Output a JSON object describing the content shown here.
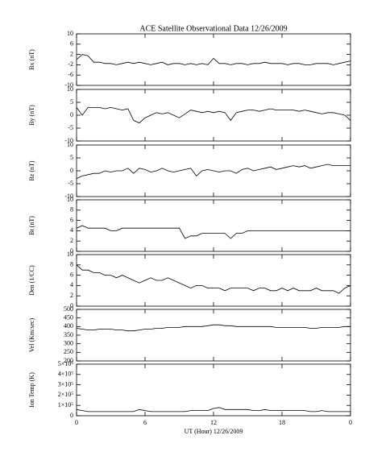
{
  "chart_data": [
    {
      "type": "line",
      "title": "ACE Satellite Observational Data   12/26/2009",
      "y_label": "Bx (nT)",
      "x": [
        0,
        0.5,
        1,
        1.5,
        2,
        2.5,
        3,
        3.5,
        4,
        4.5,
        5,
        5.5,
        6,
        6.5,
        7,
        7.5,
        8,
        8.5,
        9,
        9.5,
        10,
        10.5,
        11,
        11.5,
        12,
        12.5,
        13,
        13.5,
        14,
        14.5,
        15,
        15.5,
        16,
        16.5,
        17,
        17.5,
        18,
        18.5,
        19,
        19.5,
        20,
        20.5,
        21,
        21.5,
        22,
        22.5,
        23,
        23.5,
        24
      ],
      "values": [
        0,
        2,
        1.5,
        -1,
        -1,
        -1.5,
        -1.5,
        -2,
        -1.5,
        -1,
        -1.5,
        -1,
        -1.5,
        -2,
        -1.5,
        -1,
        -2,
        -1.5,
        -1.5,
        -2,
        -1.5,
        -2,
        -1.5,
        -2,
        0.5,
        -1.5,
        -1.5,
        -2,
        -1.5,
        -1.5,
        -2,
        -1.5,
        -1.5,
        -1,
        -1.5,
        -1.5,
        -1.5,
        -2,
        -1.5,
        -1.5,
        -2,
        -2,
        -1.5,
        -1.5,
        -1.5,
        -2,
        -1.5,
        -1,
        -0.5
      ],
      "color": "#000000",
      "xlim": [
        0,
        24
      ],
      "xticks": [
        0,
        6,
        12,
        18,
        24
      ],
      "ylim": [
        -10,
        10
      ],
      "yticks": [
        10,
        6,
        2,
        -2,
        -6,
        -10
      ]
    },
    {
      "type": "line",
      "y_label": "By (nT)",
      "x": [
        0,
        0.5,
        1,
        1.5,
        2,
        2.5,
        3,
        3.5,
        4,
        4.5,
        5,
        5.5,
        6,
        6.5,
        7,
        7.5,
        8,
        8.5,
        9,
        9.5,
        10,
        10.5,
        11,
        11.5,
        12,
        12.5,
        13,
        13.5,
        14,
        14.5,
        15,
        15.5,
        16,
        16.5,
        17,
        17.5,
        18,
        18.5,
        19,
        19.5,
        20,
        20.5,
        21,
        21.5,
        22,
        22.5,
        23,
        23.5,
        24
      ],
      "values": [
        3,
        0,
        3,
        3,
        3,
        2.5,
        3,
        2.5,
        2,
        2.5,
        -2,
        -3,
        -1,
        0,
        1,
        0.5,
        1,
        0,
        -1,
        0.5,
        2,
        1.5,
        1,
        1.5,
        1,
        1.5,
        1,
        -2,
        1,
        1.5,
        2,
        2,
        1.5,
        2,
        2.5,
        2,
        2,
        2,
        2,
        1.5,
        2,
        1.5,
        1,
        0.5,
        1,
        1,
        0.5,
        0,
        -2
      ],
      "color": "#000000",
      "xlim": [
        0,
        24
      ],
      "xticks": [
        0,
        6,
        12,
        18,
        24
      ],
      "ylim": [
        -10,
        10
      ],
      "yticks": [
        10,
        5,
        0,
        -5,
        -10
      ]
    },
    {
      "type": "line",
      "y_label": "Bz (nT)",
      "x": [
        0,
        0.5,
        1,
        1.5,
        2,
        2.5,
        3,
        3.5,
        4,
        4.5,
        5,
        5.5,
        6,
        6.5,
        7,
        7.5,
        8,
        8.5,
        9,
        9.5,
        10,
        10.5,
        11,
        11.5,
        12,
        12.5,
        13,
        13.5,
        14,
        14.5,
        15,
        15.5,
        16,
        16.5,
        17,
        17.5,
        18,
        18.5,
        19,
        19.5,
        20,
        20.5,
        21,
        21.5,
        22,
        22.5,
        23,
        23.5,
        24
      ],
      "values": [
        -3,
        -2,
        -1.5,
        -1,
        -1,
        0,
        -0.5,
        0,
        0,
        1,
        -1,
        1,
        0.5,
        -0.5,
        0,
        1,
        0,
        -0.5,
        0,
        0.5,
        1,
        -2,
        0,
        0.5,
        0,
        -0.5,
        0,
        0,
        -1,
        0.5,
        1,
        0,
        0.5,
        1,
        1.5,
        0.5,
        1,
        1.5,
        2,
        1.5,
        2,
        1,
        1.5,
        2,
        2.5,
        2,
        2,
        2,
        2
      ],
      "color": "#000000",
      "xlim": [
        0,
        24
      ],
      "xticks": [
        0,
        6,
        12,
        18,
        24
      ],
      "ylim": [
        -10,
        10
      ],
      "yticks": [
        10,
        5,
        0,
        -5,
        -10
      ]
    },
    {
      "type": "line",
      "y_label": "Bt (nT)",
      "x": [
        0,
        0.5,
        1,
        1.5,
        2,
        2.5,
        3,
        3.5,
        4,
        4.5,
        5,
        5.5,
        6,
        6.5,
        7,
        7.5,
        8,
        8.5,
        9,
        9.5,
        10,
        10.5,
        11,
        11.5,
        12,
        12.5,
        13,
        13.5,
        14,
        14.5,
        15,
        15.5,
        16,
        16.5,
        17,
        17.5,
        18,
        18.5,
        19,
        19.5,
        20,
        20.5,
        21,
        21.5,
        22,
        22.5,
        23,
        23.5,
        24
      ],
      "values": [
        4.5,
        5,
        4.5,
        4.5,
        4.5,
        4.5,
        4,
        4,
        4.5,
        4.5,
        4.5,
        4.5,
        4.5,
        4.5,
        4.5,
        4.5,
        4.5,
        4.5,
        4.5,
        2.5,
        3,
        3,
        3.5,
        3.5,
        3.5,
        3.5,
        3.5,
        2.5,
        3.5,
        3.5,
        4,
        4,
        4,
        4,
        4,
        4,
        4,
        4,
        4,
        4,
        4,
        4,
        4,
        4,
        4,
        4,
        4,
        4,
        4
      ],
      "color": "#000000",
      "xlim": [
        0,
        24
      ],
      "xticks": [
        0,
        6,
        12,
        18,
        24
      ],
      "ylim": [
        0,
        10
      ],
      "yticks": [
        10,
        8,
        6,
        4,
        2,
        0
      ]
    },
    {
      "type": "line",
      "y_label": "Den (1/CC)",
      "x": [
        0,
        0.5,
        1,
        1.5,
        2,
        2.5,
        3,
        3.5,
        4,
        4.5,
        5,
        5.5,
        6,
        6.5,
        7,
        7.5,
        8,
        8.5,
        9,
        9.5,
        10,
        10.5,
        11,
        11.5,
        12,
        12.5,
        13,
        13.5,
        14,
        14.5,
        15,
        15.5,
        16,
        16.5,
        17,
        17.5,
        18,
        18.5,
        19,
        19.5,
        20,
        20.5,
        21,
        21.5,
        22,
        22.5,
        23,
        23.5,
        24
      ],
      "values": [
        8,
        7,
        7,
        6.5,
        6.5,
        6,
        6,
        5.5,
        6,
        5.5,
        5,
        4.5,
        5,
        5.5,
        5,
        5,
        5.5,
        5,
        4.5,
        4,
        3.5,
        4,
        4,
        3.5,
        3.5,
        3.5,
        3,
        3.5,
        3.5,
        3.5,
        3.5,
        3,
        3.5,
        3.5,
        3,
        3,
        3.5,
        3,
        3.5,
        3,
        3,
        3,
        3.5,
        3,
        3,
        3,
        2.5,
        3.5,
        4
      ],
      "color": "#000000",
      "xlim": [
        0,
        24
      ],
      "xticks": [
        0,
        6,
        12,
        18,
        24
      ],
      "ylim": [
        0,
        10
      ],
      "yticks": [
        10,
        8,
        6,
        4,
        2,
        0
      ]
    },
    {
      "type": "line",
      "y_label": "Vel (Km/sec)",
      "x": [
        0,
        0.5,
        1,
        1.5,
        2,
        2.5,
        3,
        3.5,
        4,
        4.5,
        5,
        5.5,
        6,
        6.5,
        7,
        7.5,
        8,
        8.5,
        9,
        9.5,
        10,
        10.5,
        11,
        11.5,
        12,
        12.5,
        13,
        13.5,
        14,
        14.5,
        15,
        15.5,
        16,
        16.5,
        17,
        17.5,
        18,
        18.5,
        19,
        19.5,
        20,
        20.5,
        21,
        21.5,
        22,
        22.5,
        23,
        23.5,
        24
      ],
      "values": [
        390,
        385,
        380,
        380,
        385,
        385,
        385,
        380,
        380,
        375,
        375,
        380,
        385,
        385,
        390,
        390,
        395,
        395,
        395,
        400,
        400,
        400,
        400,
        405,
        410,
        410,
        405,
        405,
        400,
        400,
        400,
        400,
        400,
        400,
        400,
        395,
        395,
        395,
        395,
        395,
        395,
        390,
        390,
        395,
        395,
        395,
        395,
        400,
        400
      ],
      "color": "#000000",
      "xlim": [
        0,
        24
      ],
      "xticks": [
        0,
        6,
        12,
        18,
        24
      ],
      "ylim": [
        200,
        500
      ],
      "yticks": [
        500,
        450,
        400,
        350,
        300,
        250,
        200
      ]
    },
    {
      "type": "line",
      "y_label": "Ion Temp (K)",
      "x_label": "UT (Hour)  12/26/2009",
      "x": [
        0,
        0.5,
        1,
        1.5,
        2,
        2.5,
        3,
        3.5,
        4,
        4.5,
        5,
        5.5,
        6,
        6.5,
        7,
        7.5,
        8,
        8.5,
        9,
        9.5,
        10,
        10.5,
        11,
        11.5,
        12,
        12.5,
        13,
        13.5,
        14,
        14.5,
        15,
        15.5,
        16,
        16.5,
        17,
        17.5,
        18,
        18.5,
        19,
        19.5,
        20,
        20.5,
        21,
        21.5,
        22,
        22.5,
        23,
        23.5,
        24
      ],
      "values": [
        60000,
        50000,
        40000,
        40000,
        40000,
        40000,
        40000,
        40000,
        40000,
        40000,
        40000,
        60000,
        50000,
        40000,
        40000,
        40000,
        40000,
        40000,
        40000,
        40000,
        50000,
        50000,
        50000,
        50000,
        70000,
        80000,
        60000,
        60000,
        60000,
        60000,
        60000,
        50000,
        50000,
        60000,
        50000,
        50000,
        50000,
        50000,
        50000,
        50000,
        50000,
        40000,
        40000,
        50000,
        40000,
        40000,
        40000,
        40000,
        40000
      ],
      "color": "#000000",
      "xlim": [
        0,
        24
      ],
      "xticks": [
        0,
        6,
        12,
        18,
        {
          "value": 24,
          "label": "0"
        }
      ],
      "ylim": [
        0,
        500000
      ],
      "yticks": [
        {
          "value": 500000,
          "label": "5×10⁵"
        },
        {
          "value": 400000,
          "label": "4×10⁵"
        },
        {
          "value": 300000,
          "label": "3×10⁵"
        },
        {
          "value": 200000,
          "label": "2×10⁵"
        },
        {
          "value": 100000,
          "label": "1×10⁵"
        },
        0
      ]
    }
  ]
}
